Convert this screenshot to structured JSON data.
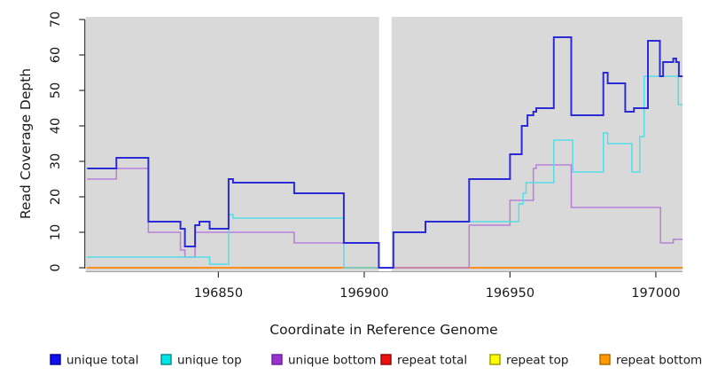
{
  "chart_data": {
    "type": "line",
    "subtype": "step-coverage-plot",
    "title": "",
    "xlabel": "Coordinate in Reference Genome",
    "ylabel": "Read Coverage Depth",
    "xlim": [
      196805,
      197009
    ],
    "ylim": [
      0,
      70
    ],
    "x_ticks": [
      196850,
      196900,
      196950,
      197000
    ],
    "x_tick_labels": [
      "196850",
      "196900",
      "196950",
      "197000"
    ],
    "y_ticks": [
      0,
      10,
      20,
      30,
      40,
      50,
      60,
      70
    ],
    "y_tick_labels": [
      "0",
      "10",
      "20",
      "30",
      "40",
      "50",
      "60",
      "70"
    ],
    "grid": false,
    "panel_background": "#d9d9d9",
    "gap_region": {
      "x_start": 196905.1,
      "x_end": 196909.4,
      "color": "#ffffff"
    },
    "legend_position": "bottom",
    "series": [
      {
        "name": "repeat total",
        "color": "#e01010",
        "width": 1.6,
        "steps": [
          [
            196805,
            0
          ]
        ]
      },
      {
        "name": "repeat top",
        "color": "#f5f500",
        "width": 1.6,
        "steps": [
          [
            196805,
            0
          ]
        ]
      },
      {
        "name": "repeat bottom",
        "color": "#ff8d1e",
        "width": 2.0,
        "steps": [
          [
            196805,
            0
          ]
        ]
      },
      {
        "name": "unique bottom",
        "color": "#b77fd9",
        "width": 1.5,
        "steps": [
          [
            196805,
            25
          ],
          [
            196815,
            28
          ],
          [
            196826,
            10
          ],
          [
            196837,
            5
          ],
          [
            196838.5,
            3
          ],
          [
            196842,
            10
          ],
          [
            196855,
            10
          ],
          [
            196876,
            7
          ],
          [
            196905,
            0
          ],
          [
            196936,
            12
          ],
          [
            196950,
            19
          ],
          [
            196958,
            28
          ],
          [
            196959,
            29
          ],
          [
            196971,
            17
          ],
          [
            197001.6,
            7
          ],
          [
            197006,
            8
          ]
        ]
      },
      {
        "name": "unique top",
        "color": "#55dce6",
        "width": 1.5,
        "steps": [
          [
            196805,
            3
          ],
          [
            196847,
            1
          ],
          [
            196853.5,
            15
          ],
          [
            196855,
            14
          ],
          [
            196893,
            0
          ],
          [
            196910,
            10
          ],
          [
            196921,
            13
          ],
          [
            196953,
            18
          ],
          [
            196954.5,
            21
          ],
          [
            196955.5,
            24
          ],
          [
            196965,
            36
          ],
          [
            196971.5,
            27
          ],
          [
            196982,
            38
          ],
          [
            196983.5,
            35
          ],
          [
            196991.8,
            27
          ],
          [
            196994.5,
            37
          ],
          [
            196996,
            54
          ],
          [
            197007.7,
            46
          ]
        ]
      },
      {
        "name": "unique total",
        "color": "#2b2bd6",
        "width": 2.0,
        "steps": [
          [
            196805,
            28
          ],
          [
            196815,
            31
          ],
          [
            196826,
            13
          ],
          [
            196837,
            11
          ],
          [
            196838.5,
            6
          ],
          [
            196842,
            12
          ],
          [
            196843.5,
            13
          ],
          [
            196847,
            11
          ],
          [
            196853.5,
            25
          ],
          [
            196855,
            24
          ],
          [
            196876,
            21
          ],
          [
            196893,
            7
          ],
          [
            196905,
            0
          ],
          [
            196910,
            10
          ],
          [
            196921,
            13
          ],
          [
            196936,
            25
          ],
          [
            196950,
            32
          ],
          [
            196954,
            40
          ],
          [
            196956,
            43
          ],
          [
            196958,
            44
          ],
          [
            196959,
            45
          ],
          [
            196965,
            65
          ],
          [
            196971,
            43
          ],
          [
            196982,
            55
          ],
          [
            196983.5,
            52
          ],
          [
            196989.5,
            44
          ],
          [
            196992.5,
            45
          ],
          [
            196997.3,
            64
          ],
          [
            197001.4,
            54
          ],
          [
            197002.5,
            58
          ],
          [
            197006,
            59
          ],
          [
            197007,
            58
          ],
          [
            197007.9,
            54
          ]
        ]
      }
    ],
    "legend": [
      {
        "label": "unique total",
        "fill": "#1111ee",
        "border": "#000099"
      },
      {
        "label": "unique top",
        "fill": "#00e5e5",
        "border": "#008b8b"
      },
      {
        "label": "unique bottom",
        "fill": "#9933cc",
        "border": "#661f99"
      },
      {
        "label": "repeat total",
        "fill": "#ee1111",
        "border": "#990000"
      },
      {
        "label": "repeat top",
        "fill": "#ffff00",
        "border": "#9a9a00"
      },
      {
        "label": "repeat bottom",
        "fill": "#ff9900",
        "border": "#aa6600"
      }
    ]
  },
  "layout_text": {
    "note": "all visible text lives in chart_data (axis titles, tick labels, legend labels)"
  }
}
